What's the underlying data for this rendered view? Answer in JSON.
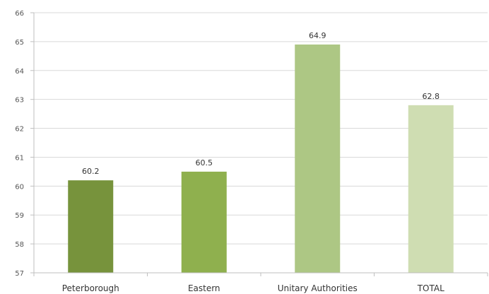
{
  "chart_data": {
    "type": "bar",
    "title": "",
    "xlabel": "",
    "ylabel": "",
    "categories": [
      "Peterborough",
      "Eastern",
      "Unitary Authorities",
      "TOTAL"
    ],
    "values": [
      60.2,
      60.5,
      64.9,
      62.8
    ],
    "data_labels": [
      "60.2",
      "60.5",
      "64.9",
      "62.8"
    ],
    "ylim": [
      57,
      66
    ],
    "yticks": [
      "57",
      "58",
      "59",
      "60",
      "61",
      "62",
      "63",
      "64",
      "65",
      "66"
    ],
    "grid": true,
    "legend": "none",
    "colors": [
      "#77933c",
      "#8fb04e",
      "#adc784",
      "#cfddb2"
    ]
  }
}
